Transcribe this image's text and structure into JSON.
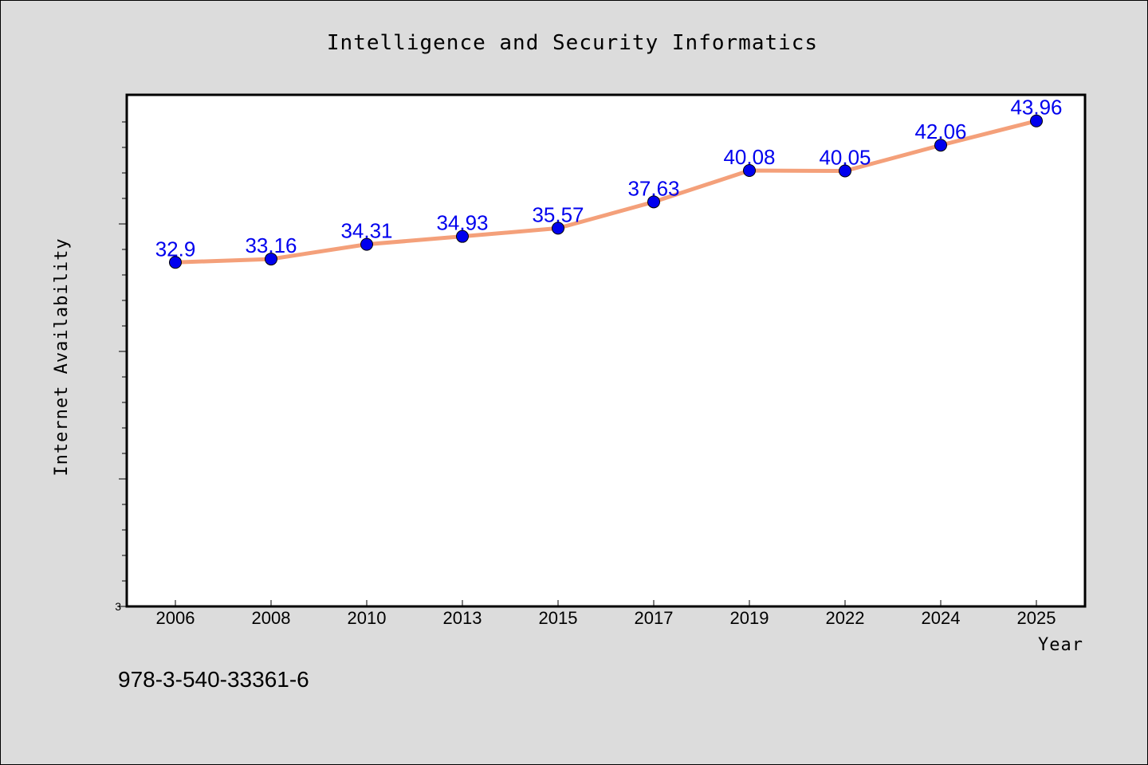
{
  "chart_data": {
    "type": "line",
    "title": "Intelligence and Security Informatics",
    "xlabel": "Year",
    "ylabel": "Internet Availability",
    "categories": [
      "2006",
      "2008",
      "2010",
      "2013",
      "2015",
      "2017",
      "2019",
      "2022",
      "2024",
      "2025"
    ],
    "series": [
      {
        "values": [
          32.9,
          33.16,
          34.31,
          34.93,
          35.57,
          37.63,
          40.08,
          40.05,
          42.06,
          43.96
        ]
      }
    ],
    "ylim": [
      3,
      23
    ],
    "y_tick_label": "3",
    "line_color": "#f4a07a",
    "marker_color": "#0000ee",
    "label_color": "#0000ee",
    "grid": false
  },
  "footer": {
    "isbn": "978-3-540-33361-6"
  }
}
